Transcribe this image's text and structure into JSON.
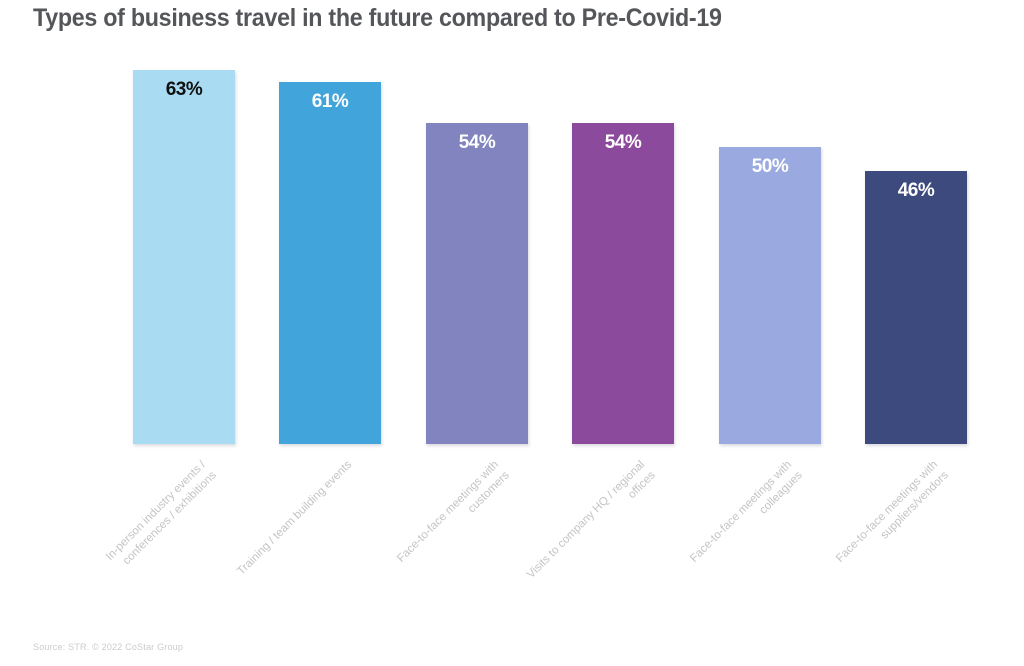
{
  "chart_data": {
    "type": "bar",
    "title": "Types of business travel in the future compared to Pre-Covid-19",
    "categories": [
      "In-person industry events /\nconferences / exhibitions",
      "Training / team building events",
      "Face-to-face meetings with\ncustomers",
      "Visits to company HQ / regional\noffices",
      "Face-to-face meetings with\ncolleagues",
      "Face-to-face meetings with\nsuppliers/vendors"
    ],
    "values": [
      63,
      61,
      54,
      54,
      50,
      46
    ],
    "value_labels": [
      "63%",
      "61%",
      "54%",
      "54%",
      "50%",
      "46%"
    ],
    "bar_colors": [
      "#a9dcf2",
      "#41a5db",
      "#8184be",
      "#8c4a9d",
      "#9aaae0",
      "#3d4a7d"
    ],
    "value_label_colors": [
      "#111111",
      "#ffffff",
      "#ffffff",
      "#ffffff",
      "#ffffff",
      "#ffffff"
    ],
    "xlabel": "",
    "ylabel": "",
    "ylim": [
      0,
      63
    ],
    "grid": false,
    "legend": false,
    "category_label_rotation_deg": -45
  },
  "source_note": "Source: STR. © 2022 CoStar Group",
  "colors": {
    "background": "#ffffff",
    "title_text": "#54565a",
    "category_label_text": "#c4c4c4",
    "source_text": "#cccccc"
  }
}
